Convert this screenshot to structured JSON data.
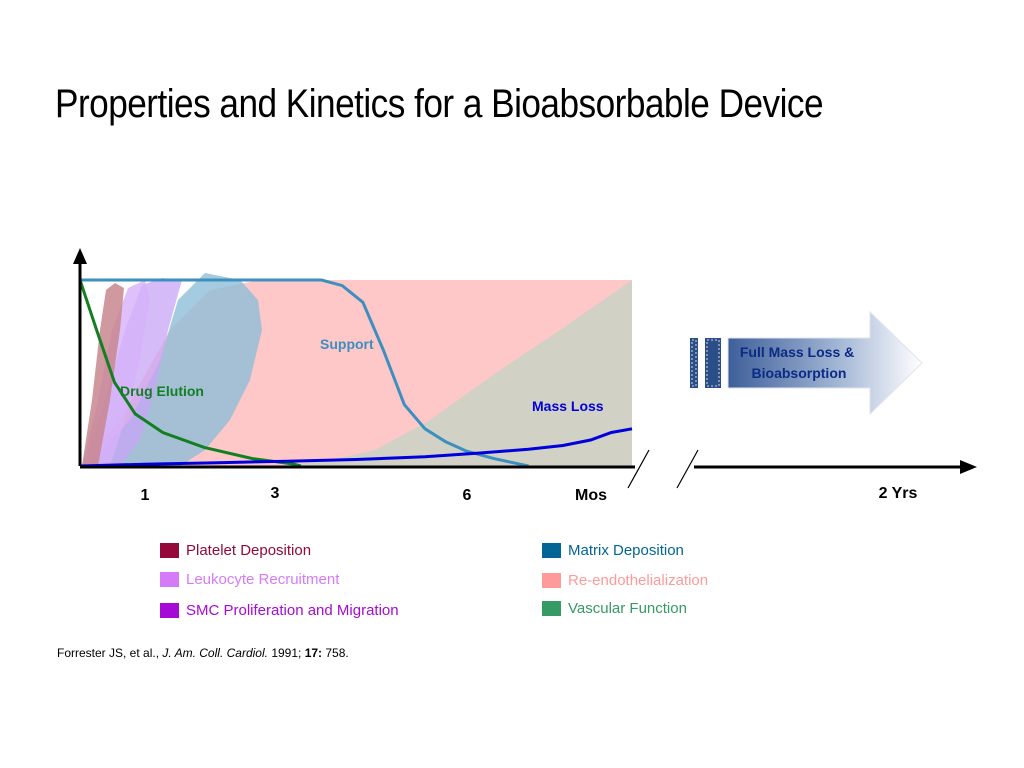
{
  "title": "Properties and Kinetics for a Bioabsorbable Device",
  "chart_data": {
    "type": "area",
    "x_unit": "Mos",
    "x_ticks": [
      "1",
      "3",
      "6"
    ],
    "x_unit_label": "Mos",
    "far_tick": "2 Yrs",
    "x_range_months": [
      0,
      8
    ],
    "y_range": [
      0,
      100
    ],
    "colors": {
      "platelet": "#C8868E",
      "leukocyte": "#D6B2FA",
      "smc": "#C7A6F7",
      "matrix": "#8FBED8",
      "reendo": "#FFC8C8",
      "vascular": "#D2D1C6",
      "drug": "#137F23",
      "support": "#3C8FBE",
      "mass_loss": "#0000DD"
    },
    "series": [
      {
        "name": "Drug Elution",
        "x": [
          0,
          0.25,
          0.5,
          0.8,
          1.2,
          1.8,
          2.5,
          3.1,
          3.2
        ],
        "y": [
          100,
          72,
          45,
          28,
          18,
          10,
          4,
          1,
          0
        ]
      },
      {
        "name": "Support",
        "x": [
          0,
          1,
          2,
          3,
          3.5,
          3.8,
          4.1,
          4.4,
          4.7,
          5.0,
          5.3,
          5.6,
          6.0,
          6.5
        ],
        "y": [
          100,
          100,
          100,
          100,
          100,
          97,
          88,
          62,
          33,
          20,
          13,
          8,
          4,
          0
        ]
      },
      {
        "name": "Mass Loss",
        "x": [
          0,
          1,
          2,
          3,
          4,
          5,
          5.8,
          6.5,
          7.0,
          7.4,
          7.7,
          8.0
        ],
        "y": [
          0,
          1,
          1.8,
          2.6,
          3.5,
          5,
          7,
          9,
          11,
          14,
          18,
          20
        ]
      }
    ],
    "annotation": "Full Mass Loss & Bioabsorption",
    "legend": [
      {
        "label": "Platelet Deposition",
        "color": "#94093A"
      },
      {
        "label": "Leukocyte Recruitment",
        "color": "#D67BF8"
      },
      {
        "label": "SMC Proliferation and Migration",
        "color": "#A50AD6"
      },
      {
        "label": "Matrix Deposition",
        "color": "#036594"
      },
      {
        "label": "Re-endothelialization",
        "color": "#FE9A9A"
      },
      {
        "label": "Vascular Function",
        "color": "#359A63"
      }
    ]
  },
  "citation": {
    "authors": "Forrester JS, et al.,",
    "journal": "J. Am. Coll. Cardiol.",
    "year": "1991;",
    "volume": "17:",
    "page": "758."
  }
}
